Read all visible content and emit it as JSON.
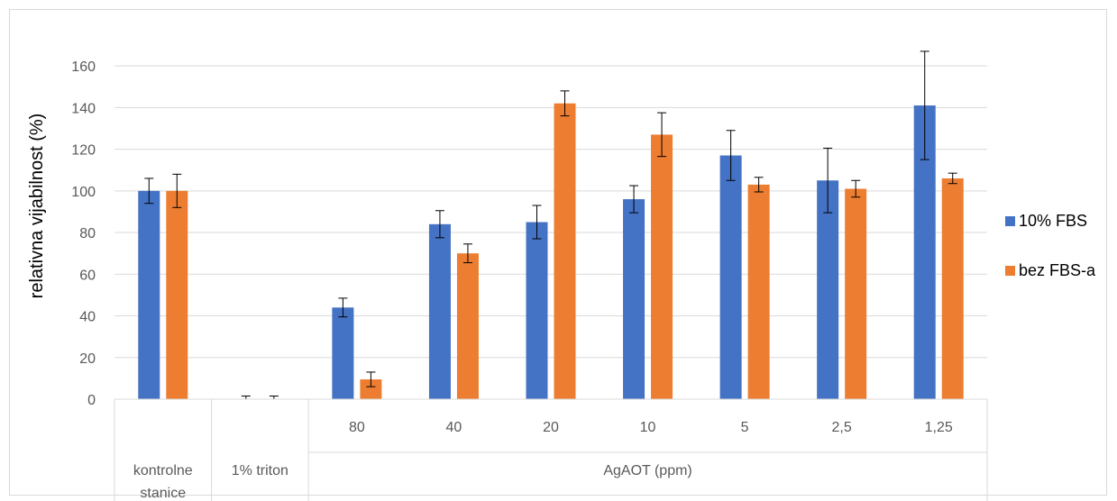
{
  "chart_data": {
    "type": "bar",
    "ylabel": "relativna vijabilnost (%)",
    "ylim": [
      0,
      170
    ],
    "yticks": [
      0,
      20,
      40,
      60,
      80,
      100,
      120,
      140,
      160
    ],
    "grid": true,
    "legend_position": "right",
    "categories": [
      "",
      "",
      "80",
      "40",
      "20",
      "10",
      "5",
      "2,5",
      "1,25"
    ],
    "group_labels": [
      {
        "label": "kontrolne stanice",
        "span": [
          0,
          0
        ]
      },
      {
        "label": "1% triton",
        "span": [
          1,
          1
        ]
      },
      {
        "label": "AgAOT (ppm)",
        "span": [
          2,
          8
        ]
      }
    ],
    "series": [
      {
        "name": "10% FBS",
        "color": "#4472C4",
        "values": [
          100,
          0,
          44,
          84,
          85,
          96,
          117,
          105,
          141
        ],
        "errors": [
          6,
          1.5,
          4.5,
          6.5,
          8,
          6.5,
          12,
          15.5,
          26
        ]
      },
      {
        "name": "bez FBS-a",
        "color": "#ED7D31",
        "values": [
          100,
          0,
          9.5,
          70,
          142,
          127,
          103,
          101,
          106
        ],
        "errors": [
          8,
          1.5,
          3.5,
          4.5,
          6,
          10.5,
          3.5,
          4,
          2.5
        ]
      }
    ]
  }
}
